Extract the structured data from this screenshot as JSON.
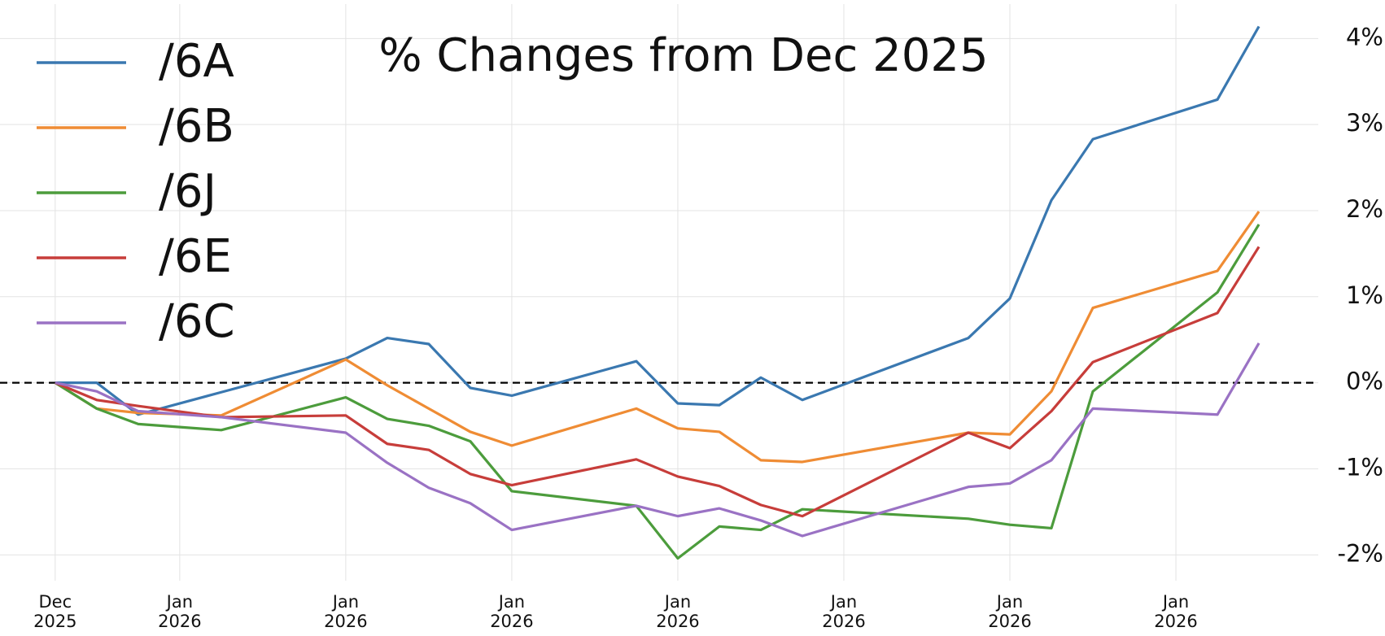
{
  "chart_data": {
    "type": "line",
    "title": "% Changes from Dec 2025",
    "x": [
      0,
      1,
      2,
      4,
      7,
      8,
      9,
      10,
      11,
      14,
      15,
      16,
      17,
      18,
      22,
      23,
      24,
      25,
      28,
      29
    ],
    "series": [
      {
        "name": "/6A",
        "color": "#3a78b0",
        "values": [
          0,
          0,
          -0.37,
          -0.11,
          0.28,
          0.52,
          0.45,
          -0.06,
          -0.15,
          0.25,
          -0.24,
          -0.26,
          0.06,
          -0.2,
          0.52,
          0.98,
          2.12,
          2.83,
          3.29,
          4.14
        ]
      },
      {
        "name": "/6B",
        "color": "#ef8c34",
        "values": [
          0,
          -0.3,
          -0.35,
          -0.38,
          0.27,
          -0.03,
          -0.3,
          -0.57,
          -0.73,
          -0.3,
          -0.53,
          -0.57,
          -0.9,
          -0.92,
          -0.58,
          -0.6,
          -0.1,
          0.87,
          1.3,
          1.99
        ]
      },
      {
        "name": "/6J",
        "color": "#4c9c3c",
        "values": [
          0,
          -0.3,
          -0.48,
          -0.55,
          -0.17,
          -0.42,
          -0.5,
          -0.68,
          -1.26,
          -1.43,
          -2.04,
          -1.67,
          -1.71,
          -1.47,
          -1.58,
          -1.65,
          -1.69,
          -0.1,
          1.05,
          1.84
        ]
      },
      {
        "name": "/6E",
        "color": "#c73d3a",
        "values": [
          0,
          -0.2,
          -0.27,
          -0.4,
          -0.38,
          -0.71,
          -0.78,
          -1.06,
          -1.19,
          -0.89,
          -1.09,
          -1.2,
          -1.42,
          -1.55,
          -0.58,
          -0.76,
          -0.33,
          0.24,
          0.81,
          1.58
        ]
      },
      {
        "name": "/6C",
        "color": "#9a72c4",
        "values": [
          0,
          -0.1,
          -0.33,
          -0.4,
          -0.58,
          -0.93,
          -1.22,
          -1.4,
          -1.71,
          -1.43,
          -1.55,
          -1.46,
          -1.6,
          -1.78,
          -1.21,
          -1.17,
          -0.9,
          -0.3,
          -0.37,
          0.46
        ]
      }
    ],
    "xlim": [
      -1.33,
      30.43
    ],
    "xticks": [
      {
        "value": 0,
        "label": "Dec 2025"
      },
      {
        "value": 3,
        "label": "Jan 2026"
      },
      {
        "value": 7,
        "label": "Jan 2026"
      },
      {
        "value": 11,
        "label": "Jan 2026"
      },
      {
        "value": 15,
        "label": "Jan 2026"
      },
      {
        "value": 19,
        "label": "Jan 2026"
      },
      {
        "value": 23,
        "label": "Jan 2026"
      },
      {
        "value": 27,
        "label": "Jan 2026"
      }
    ],
    "ylim": [
      -2.3,
      4.4
    ],
    "yticks": [
      {
        "value": -2,
        "label": "-2%"
      },
      {
        "value": -1,
        "label": "-1%"
      },
      {
        "value": 0,
        "label": "0%"
      },
      {
        "value": 1,
        "label": "1%"
      },
      {
        "value": 2,
        "label": "2%"
      },
      {
        "value": 3,
        "label": "3%"
      },
      {
        "value": 4,
        "label": "4%"
      }
    ],
    "grid": true,
    "legend": "upper left"
  }
}
